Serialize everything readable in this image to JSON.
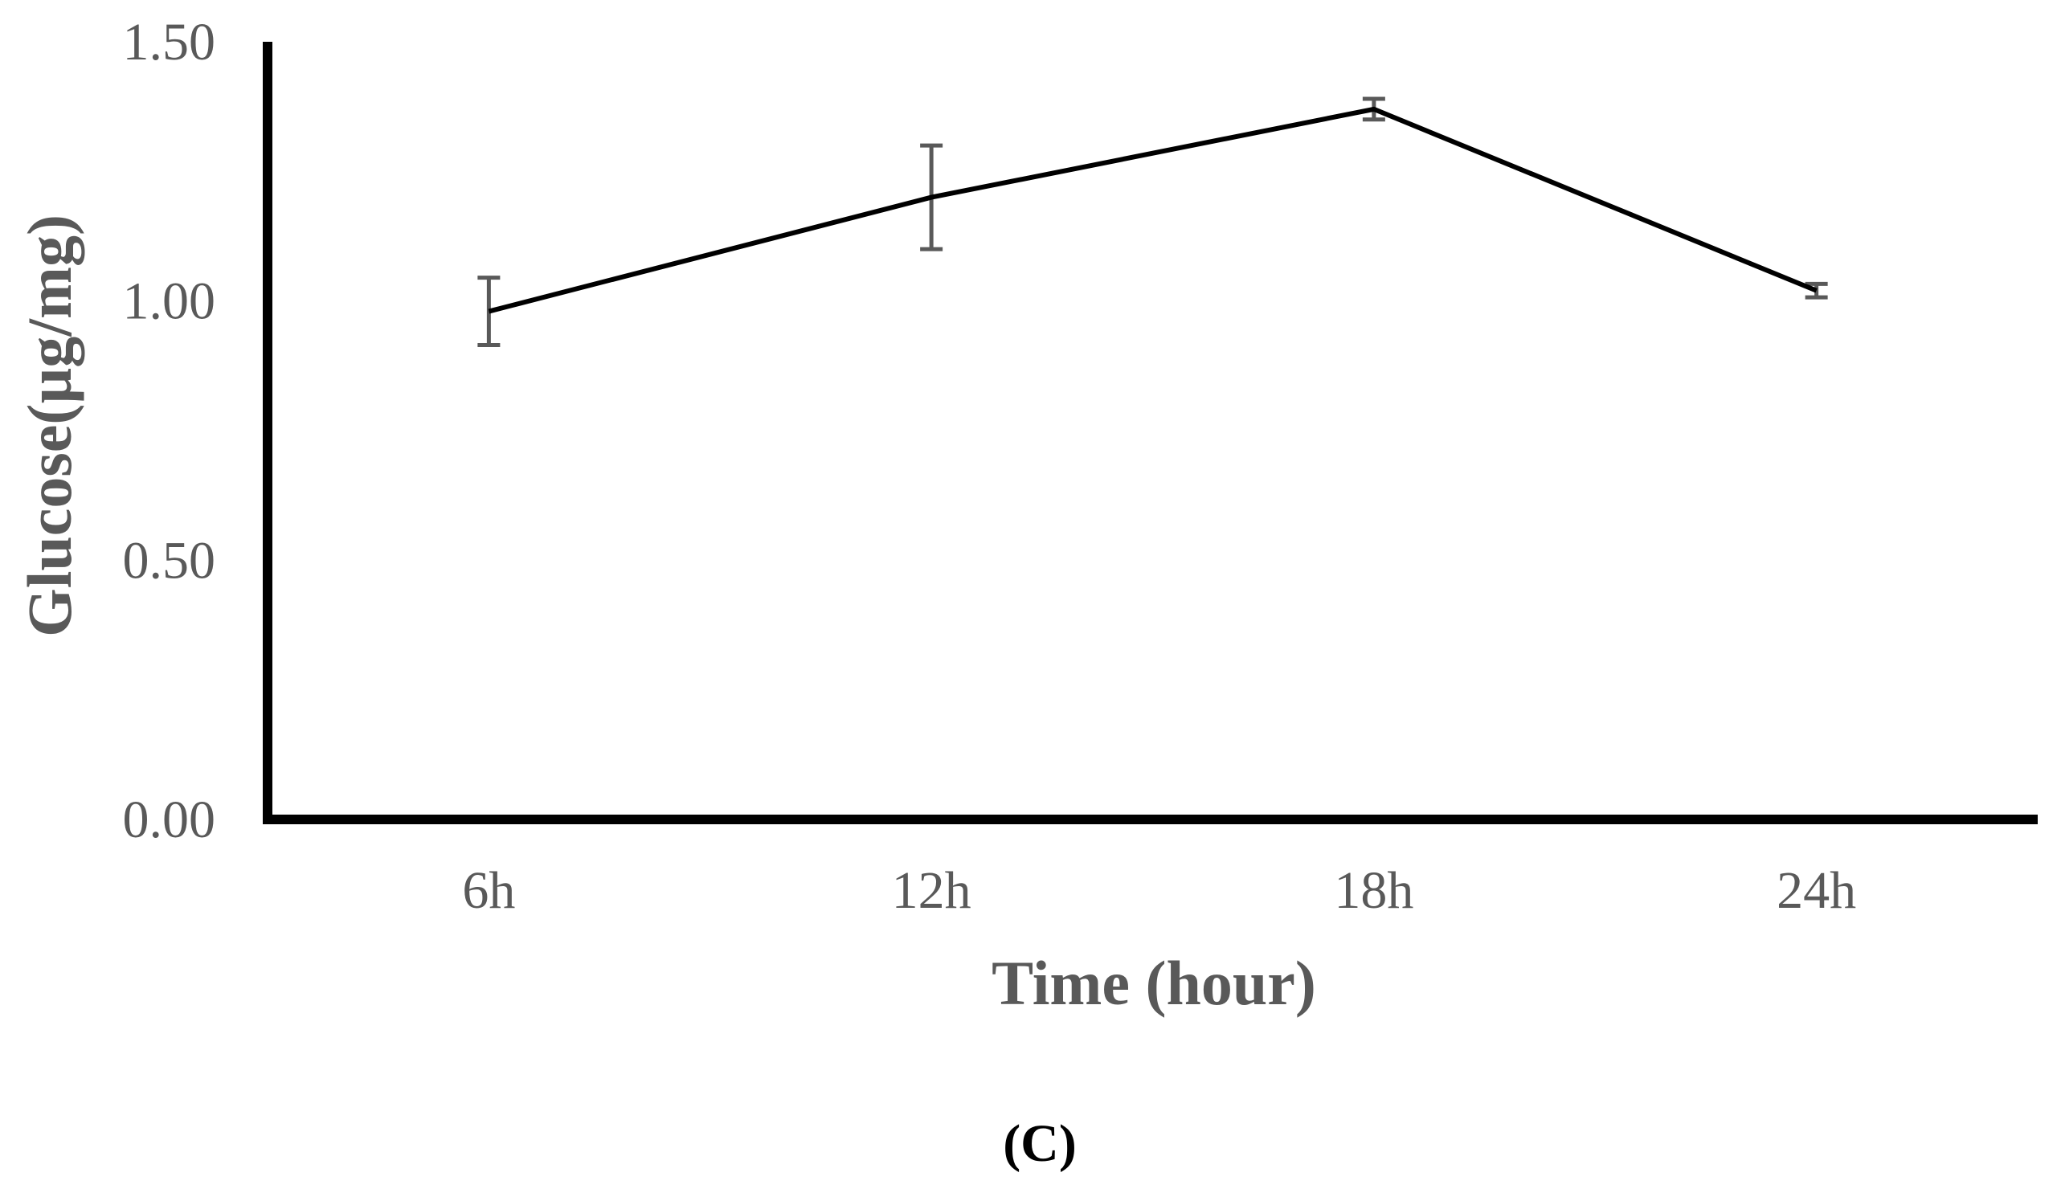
{
  "chart_data": {
    "type": "line",
    "categories": [
      "6h",
      "12h",
      "18h",
      "24h"
    ],
    "series": [
      {
        "values": [
          0.98,
          1.2,
          1.37,
          1.02
        ],
        "errors": [
          0.065,
          0.1,
          0.02,
          0.013
        ],
        "color": "#000000"
      }
    ],
    "xlabel": "Time (hour)",
    "ylabel": "Glucose(µg/mg)",
    "ylim": [
      0,
      1.5
    ],
    "yticks": [
      "0.00",
      "0.50",
      "1.00",
      "1.50"
    ],
    "yticks_values": [
      0,
      0.5,
      1.0,
      1.5
    ],
    "grid": false,
    "error_bar_color": "#595959",
    "axis_color": "#000000",
    "text_color": "#595959"
  },
  "panel_label": "(C)"
}
